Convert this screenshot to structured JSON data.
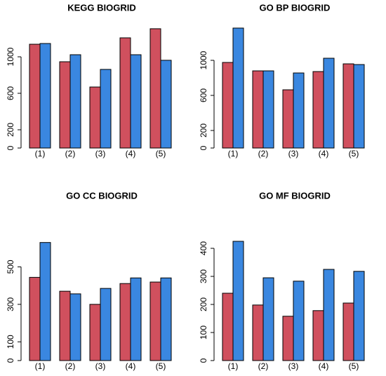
{
  "chart_data": [
    {
      "type": "bar",
      "title": "KEGG BIOGRID",
      "categories": [
        "(1)",
        "(2)",
        "(3)",
        "(4)",
        "(5)"
      ],
      "series": [
        {
          "color": "#d0505e",
          "values": [
            1138,
            946,
            669,
            1208,
            1308
          ]
        },
        {
          "color": "#3a87e0",
          "values": [
            1146,
            1023,
            862,
            1023,
            962
          ]
        }
      ],
      "ylim": [
        0,
        1346
      ],
      "yticks": [
        0,
        200,
        600,
        1000
      ]
    },
    {
      "type": "bar",
      "title": "GO BP BIOGRID",
      "categories": [
        "(1)",
        "(2)",
        "(3)",
        "(4)",
        "(5)"
      ],
      "series": [
        {
          "color": "#d0505e",
          "values": [
            976,
            880,
            664,
            872,
            960
          ]
        },
        {
          "color": "#3a87e0",
          "values": [
            1368,
            880,
            856,
            1024,
            952
          ]
        }
      ],
      "ylim": [
        0,
        1400
      ],
      "yticks": [
        0,
        200,
        600,
        1000
      ]
    },
    {
      "type": "bar",
      "title": "GO CC BIOGRID",
      "categories": [
        "(1)",
        "(2)",
        "(3)",
        "(4)",
        "(5)"
      ],
      "series": [
        {
          "color": "#d0505e",
          "values": [
            444,
            370,
            300,
            411,
            419
          ]
        },
        {
          "color": "#3a87e0",
          "values": [
            630,
            356,
            385,
            441,
            441
          ]
        }
      ],
      "ylim": [
        0,
        786
      ],
      "yticks": [
        0,
        100,
        300,
        500
      ]
    },
    {
      "type": "bar",
      "title": "GO MF BIOGRID",
      "categories": [
        "(1)",
        "(2)",
        "(3)",
        "(4)",
        "(5)"
      ],
      "series": [
        {
          "color": "#d0505e",
          "values": [
            240,
            198,
            158,
            178,
            205
          ]
        },
        {
          "color": "#3a87e0",
          "values": [
            425,
            295,
            283,
            325,
            318
          ]
        }
      ],
      "ylim": [
        0,
        525
      ],
      "yticks": [
        0,
        100,
        200,
        300,
        400
      ]
    }
  ]
}
